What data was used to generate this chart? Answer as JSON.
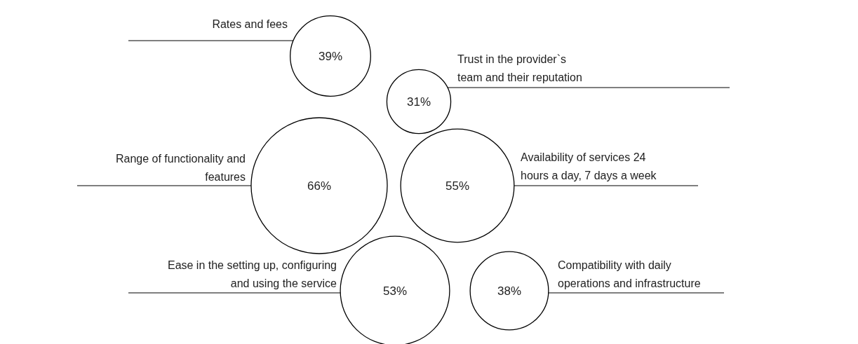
{
  "chart_data": {
    "type": "other",
    "categories": [
      "Rates and fees",
      "Trust in the provider`s\nteam and their reputation",
      "Range of functionality and\nfeatures",
      "Availability of services 24\nhours a day, 7 days a week",
      "Ease in the setting up, configuring\nand using the service",
      "Compatibility with daily\noperations and infrastructure"
    ],
    "values": [
      39,
      31,
      66,
      55,
      53,
      38
    ],
    "value_labels": [
      "39%",
      "31%",
      "66%",
      "55%",
      "53%",
      "38%"
    ],
    "color": "#000000"
  }
}
